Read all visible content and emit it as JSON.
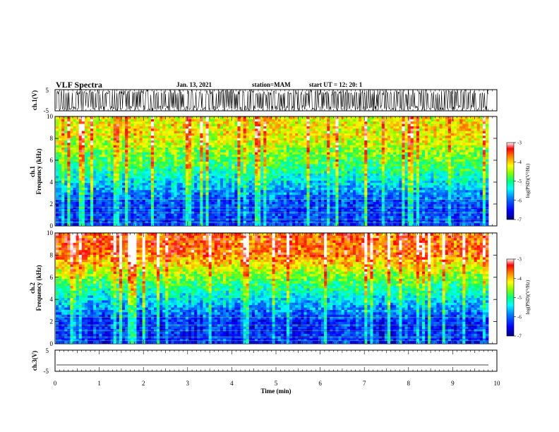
{
  "header": {
    "title": "VLF Spectra",
    "date": "Jan. 13, 2021",
    "station": "station=MAM",
    "start": "start UT =  12: 20: 1"
  },
  "colors": {
    "spectrogram_scale": [
      "#000080",
      "#0000ff",
      "#0080ff",
      "#00ffff",
      "#00ff80",
      "#80ff00",
      "#ffff00",
      "#ff8000",
      "#ff0000",
      "#ffffff"
    ]
  },
  "chart_data": [
    {
      "type": "line",
      "ylabel": "ch.1(V)",
      "ylim": [
        -5,
        5
      ],
      "yticks": [
        "5",
        "-5"
      ],
      "description_series": "waveform, rapidly oscillating between about -5 and 5"
    },
    {
      "type": "heatmap",
      "ylabel": "ch.1\nFrequency (kHz)",
      "ylabel_lines": [
        "ch.1",
        "Frequency (kHz)"
      ],
      "ylim": [
        0,
        10
      ],
      "yticks": [
        "0",
        "2",
        "4",
        "6",
        "8",
        "10"
      ],
      "colorbar": {
        "label": "log(PSD)(V²/Hz)",
        "range": [
          -7,
          -3
        ],
        "ticks": [
          "-3",
          "-4",
          "-5",
          "-6",
          "-7"
        ]
      },
      "bands": [
        {
          "from_khz": 0,
          "to_khz": 4,
          "log_psd": -6.2
        },
        {
          "from_khz": 4,
          "to_khz": 6.5,
          "log_psd": -5.0
        },
        {
          "from_khz": 6.5,
          "to_khz": 10,
          "log_psd": -4.2
        }
      ]
    },
    {
      "type": "heatmap",
      "ylabel": "ch.2\nFrequency (kHz)",
      "ylabel_lines": [
        "ch.2",
        "Frequency (kHz)"
      ],
      "ylim": [
        0,
        10
      ],
      "yticks": [
        "0",
        "2",
        "4",
        "6",
        "8",
        "10"
      ],
      "colorbar": {
        "label": "log(PSD)(V²/Hz)",
        "range": [
          -7,
          -3
        ],
        "ticks": [
          "-3",
          "-4",
          "-5",
          "-6",
          "-7"
        ]
      },
      "bands": [
        {
          "from_khz": 0,
          "to_khz": 4,
          "log_psd": -6.3
        },
        {
          "from_khz": 4,
          "to_khz": 6.5,
          "log_psd": -5.0
        },
        {
          "from_khz": 6.5,
          "to_khz": 10,
          "log_psd": -3.6
        }
      ]
    },
    {
      "type": "line",
      "ylabel": "ch.3(V)",
      "ylim": [
        -5,
        5
      ],
      "yticks": [
        "5",
        "-5"
      ],
      "value": -2,
      "xlabel": "Time (min)",
      "xlim": [
        0,
        10
      ],
      "xticks": [
        "0",
        "1",
        "2",
        "3",
        "4",
        "5",
        "6",
        "7",
        "8",
        "9",
        "10"
      ]
    }
  ]
}
